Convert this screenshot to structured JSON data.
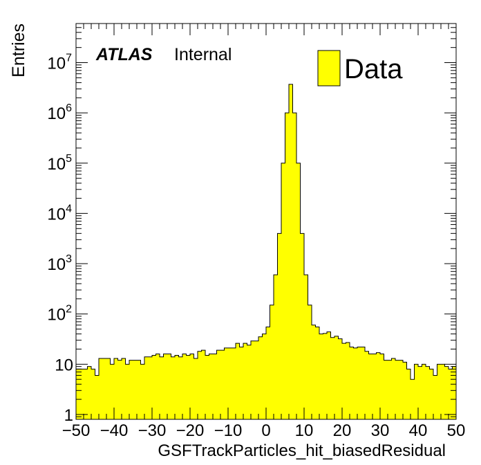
{
  "chart_data": {
    "type": "bar",
    "title": "",
    "xlabel": "GSFTrackParticles_hit_biasedResidual",
    "ylabel": "Entries",
    "xlim": [
      -50,
      50
    ],
    "ylim": [
      0.8,
      60000000
    ],
    "yscale": "log",
    "bin_width": 1,
    "x_ticks": [
      "−50",
      "−40",
      "−30",
      "−20",
      "−10",
      "0",
      "10",
      "20",
      "30",
      "40",
      "50"
    ],
    "y_ticks": [
      {
        "base": "1",
        "exp": ""
      },
      {
        "base": "10",
        "exp": ""
      },
      {
        "base": "10",
        "exp": "2"
      },
      {
        "base": "10",
        "exp": "3"
      },
      {
        "base": "10",
        "exp": "4"
      },
      {
        "base": "10",
        "exp": "5"
      },
      {
        "base": "10",
        "exp": "6"
      },
      {
        "base": "10",
        "exp": "7"
      }
    ],
    "experiment_label": "ATLAS",
    "status_label": "Internal",
    "legend": {
      "label": "Data",
      "color": "#ffff00",
      "position": "top-right"
    },
    "fill_color": "#ffff00",
    "line_color": "#000000",
    "bin_edges_start": -50,
    "values": [
      8,
      8,
      8,
      9,
      8,
      6,
      13,
      13,
      13,
      10,
      13,
      12,
      13,
      10,
      12,
      12,
      12,
      10,
      14,
      14,
      15,
      16,
      14,
      16,
      16,
      14,
      15,
      14,
      16,
      15,
      16,
      13,
      18,
      19,
      15,
      16,
      16,
      19,
      19,
      21,
      21,
      21,
      26,
      22,
      26,
      24,
      29,
      29,
      35,
      40,
      55,
      150,
      600,
      4000,
      100000,
      1000000,
      3700000,
      1000000,
      100000,
      4000,
      600,
      150,
      60,
      55,
      40,
      41,
      44,
      34,
      36,
      32,
      26,
      27,
      22,
      21,
      22,
      22,
      18,
      16,
      16,
      17,
      16,
      12,
      12,
      13,
      12,
      12,
      11,
      8,
      5,
      10,
      9,
      10,
      9,
      8,
      6,
      10,
      10,
      9,
      8,
      9
    ]
  }
}
